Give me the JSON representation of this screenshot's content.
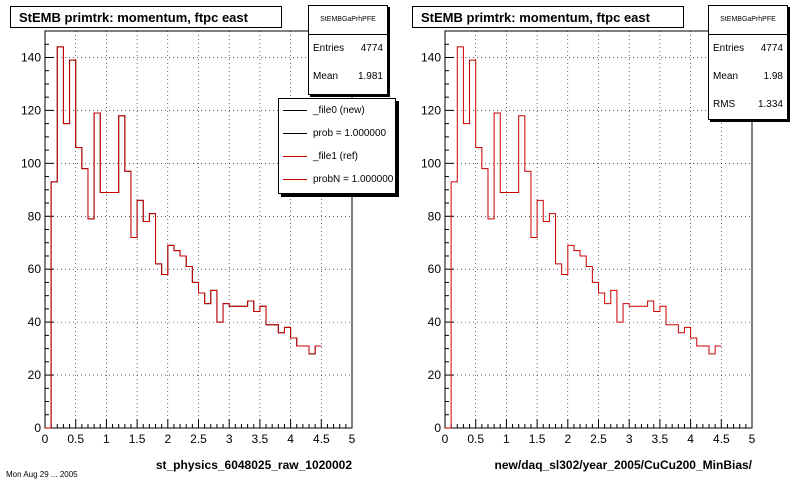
{
  "colors": {
    "new": "#000000",
    "ref": "#cc0000",
    "frame": "#000000",
    "grid": "#000000"
  },
  "panels": [
    {
      "title": "StEMB primtrk: momentum, ftpc east",
      "xlabel": "st_physics_6048025_raw_1020002",
      "stats": {
        "header": "StEMBGaPrhPFE",
        "rows": [
          {
            "key": "Entries",
            "value": "4774"
          },
          {
            "key": "Mean",
            "value": "1.981"
          }
        ]
      },
      "legend": [
        {
          "label": "_file0 (new)",
          "color": "#000000"
        },
        {
          "label": "prob = 1.000000",
          "color": "#000000"
        },
        {
          "label": "_file1 (ref)",
          "color": "#cc0000"
        },
        {
          "label": "probN = 1.000000",
          "color": "#cc0000"
        }
      ]
    },
    {
      "title": "StEMB primtrk: momentum, ftpc east",
      "xlabel": "new/daq_sl302/year_2005/CuCu200_MinBias/",
      "stats": {
        "header": "StEMBGaPrhPFE",
        "rows": [
          {
            "key": "Entries",
            "value": "4774"
          },
          {
            "key": "Mean",
            "value": "1.98"
          },
          {
            "key": "RMS",
            "value": "1.334"
          }
        ]
      }
    }
  ],
  "footer": "Mon Aug 29 ... 2005",
  "chart_data": [
    {
      "type": "histogram",
      "title": "StEMB primtrk: momentum, ftpc east",
      "xlabel": "st_physics_6048025_raw_1020002",
      "xlim": [
        0,
        5
      ],
      "ylim": [
        0,
        150
      ],
      "x_ticks": [
        "0",
        "0.5",
        "1",
        "1.5",
        "2",
        "2.5",
        "3",
        "3.5",
        "4",
        "4.5",
        "5"
      ],
      "y_ticks": [
        "0",
        "20",
        "40",
        "60",
        "80",
        "100",
        "120",
        "140"
      ],
      "grid": true,
      "legend_position": "top-right",
      "bin_width": 0.1,
      "series": [
        {
          "name": "_file0 (new)",
          "color": "#000000",
          "values": [
            0,
            93,
            144,
            115,
            139,
            106,
            98,
            79,
            119,
            89,
            89,
            89,
            118,
            97,
            72,
            86,
            78,
            81,
            62,
            58,
            69,
            67,
            65,
            61,
            55,
            51,
            47,
            52,
            40,
            47,
            46,
            46,
            46,
            48,
            44,
            46,
            39,
            39,
            36,
            38,
            34,
            31,
            31,
            28,
            31
          ]
        },
        {
          "name": "_file1 (ref)",
          "color": "#cc0000",
          "values": [
            0,
            93,
            144,
            115,
            139,
            106,
            98,
            79,
            119,
            89,
            89,
            89,
            118,
            97,
            72,
            86,
            78,
            81,
            62,
            58,
            69,
            67,
            65,
            61,
            55,
            51,
            47,
            52,
            40,
            47,
            46,
            46,
            46,
            48,
            44,
            46,
            39,
            39,
            36,
            38,
            34,
            31,
            31,
            28,
            31
          ]
        }
      ],
      "x_edges_start": 0.1
    },
    {
      "type": "histogram",
      "title": "StEMB primtrk: momentum, ftpc east",
      "xlabel": "new/daq_sl302/year_2005/CuCu200_MinBias/",
      "xlim": [
        0,
        5
      ],
      "ylim": [
        0,
        150
      ],
      "x_ticks": [
        "0",
        "0.5",
        "1",
        "1.5",
        "2",
        "2.5",
        "3",
        "3.5",
        "4",
        "4.5",
        "5"
      ],
      "y_ticks": [
        "0",
        "20",
        "40",
        "60",
        "80",
        "100",
        "120",
        "140"
      ],
      "grid": true,
      "bin_width": 0.1,
      "series": [
        {
          "name": "",
          "color": "#cc0000",
          "values": [
            0,
            93,
            144,
            115,
            139,
            106,
            98,
            79,
            119,
            89,
            89,
            89,
            118,
            97,
            72,
            86,
            78,
            81,
            62,
            58,
            69,
            67,
            65,
            61,
            55,
            51,
            47,
            52,
            40,
            47,
            46,
            46,
            46,
            48,
            44,
            46,
            39,
            39,
            36,
            38,
            34,
            31,
            31,
            28,
            31
          ]
        }
      ],
      "x_edges_start": 0.1
    }
  ]
}
